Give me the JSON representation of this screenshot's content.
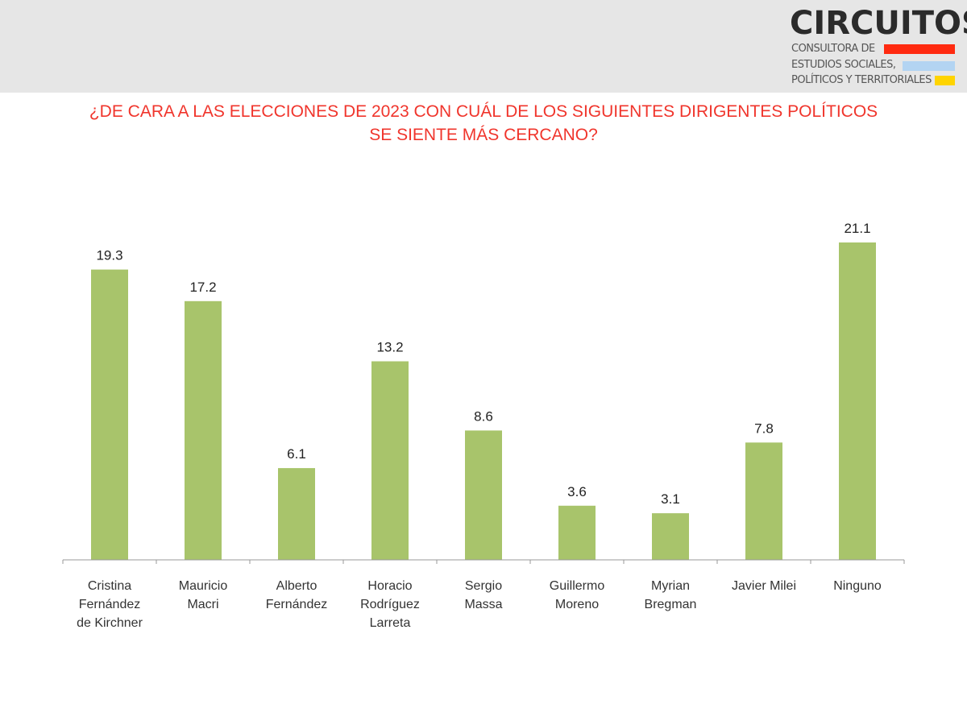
{
  "logo": {
    "name": "CIRCUITOS",
    "lines": [
      "CONSULTORA DE",
      "ESTUDIOS SOCIALES,",
      "POLÍTICOS Y TERRITORIALES"
    ],
    "stripe_colors": [
      "#ff2a10",
      "#b3d4f2",
      "#ffd400"
    ]
  },
  "title_lines": [
    "¿DE CARA A LAS ELECCIONES DE 2023 CON CUÁL DE LOS SIGUIENTES DIRIGENTES POLÍTICOS",
    "SE SIENTE MÁS CERCANO?"
  ],
  "chart_data": {
    "type": "bar",
    "title": "¿DE CARA A LAS ELECCIONES DE 2023 CON CUÁL DE LOS SIGUIENTES DIRIGENTES POLÍTICOS SE SIENTE MÁS CERCANO?",
    "categories": [
      [
        "Cristina",
        "Fernández",
        "de Kirchner"
      ],
      [
        "Mauricio",
        "Macri"
      ],
      [
        "Alberto",
        "Fernández"
      ],
      [
        "Horacio",
        "Rodríguez",
        "Larreta"
      ],
      [
        "Sergio",
        "Massa"
      ],
      [
        "Guillermo",
        "Moreno"
      ],
      [
        "Myrian",
        "Bregman"
      ],
      [
        "Javier Milei"
      ],
      [
        "Ninguno"
      ]
    ],
    "values": [
      19.3,
      17.2,
      6.1,
      13.2,
      8.6,
      3.6,
      3.1,
      7.8,
      21.1
    ],
    "value_labels": [
      "19.3",
      "17.2",
      "6.1",
      "13.2",
      "8.6",
      "3.6",
      "3.1",
      "7.8",
      "21.1"
    ],
    "bar_color": "#a8c46b",
    "xlabel": "",
    "ylabel": "",
    "ylim": [
      0,
      21.1
    ],
    "grid": false
  }
}
